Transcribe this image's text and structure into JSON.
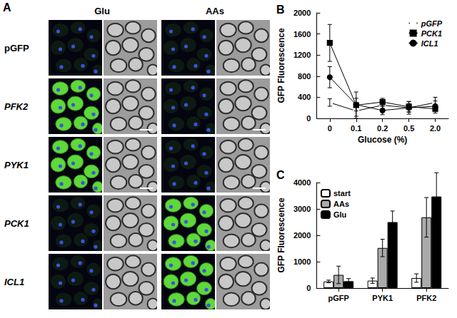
{
  "panel_a": {
    "label": "A",
    "columns": [
      "Glu",
      "AAs"
    ],
    "rows": [
      "pGFP",
      "PFK2",
      "PYK1",
      "PCK1",
      "ICL1"
    ],
    "fluorescent": [
      [
        false,
        false
      ],
      [
        true,
        false
      ],
      [
        true,
        false
      ],
      [
        false,
        true
      ],
      [
        false,
        true
      ]
    ]
  },
  "chart_data": [
    {
      "type": "line",
      "title": "B",
      "x_label": "Glucose (%)",
      "y_label": "GFP Fluorescence",
      "categories": [
        "0",
        "0.1",
        "0.2",
        "0.5",
        "2.0"
      ],
      "series": [
        {
          "name": "pGFP",
          "color": "#000000",
          "marker": "open_circle",
          "values": [
            300,
            140,
            250,
            200,
            300
          ],
          "errors": [
            70,
            100,
            80,
            80,
            100
          ]
        },
        {
          "name": "PCK1",
          "color": "#000000",
          "marker": "square",
          "values": [
            1430,
            250,
            310,
            220,
            180
          ],
          "errors": [
            350,
            250,
            70,
            100,
            80
          ]
        },
        {
          "name": "ICL1",
          "color": "#000000",
          "marker": "circle",
          "values": [
            780,
            260,
            150,
            200,
            230
          ],
          "errors": [
            200,
            120,
            80,
            120,
            100
          ]
        }
      ],
      "ylim": [
        0,
        2000
      ],
      "yticks": [
        0,
        400,
        800,
        1200,
        1600,
        2000
      ],
      "legend": "upper right"
    },
    {
      "type": "bar",
      "title": "C",
      "y_label": "GFP Fluorescence",
      "categories": [
        "pGFP",
        "PYK1",
        "PFK2"
      ],
      "series": [
        {
          "name": "start",
          "color": "#ffffff",
          "values": [
            250,
            280,
            380
          ],
          "errors": [
            50,
            100,
            160
          ]
        },
        {
          "name": "AAs",
          "color": "#aaaaaa",
          "values": [
            500,
            1520,
            2680
          ],
          "errors": [
            330,
            330,
            750
          ]
        },
        {
          "name": "Glu",
          "color": "#000000",
          "values": [
            260,
            2500,
            3470
          ],
          "errors": [
            100,
            420,
            900
          ]
        }
      ],
      "ylim": [
        0,
        4000
      ],
      "yticks": [
        0,
        1000,
        2000,
        3000,
        4000
      ],
      "legend": "upper left"
    }
  ]
}
